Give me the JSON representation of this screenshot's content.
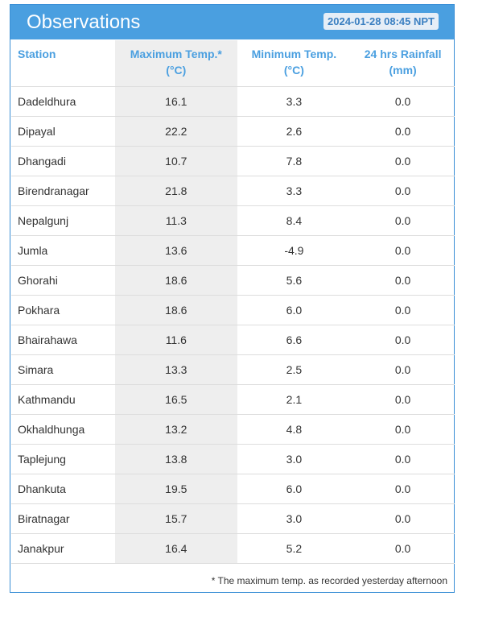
{
  "header": {
    "title": "Observations",
    "timestamp": "2024-01-28 08:45 NPT"
  },
  "table": {
    "columns": {
      "station": "Station",
      "max_temp_line1": "Maximum Temp.*",
      "max_temp_line2": "(°C)",
      "min_temp_line1": "Minimum Temp.",
      "min_temp_line2": "(°C)",
      "rainfall_line1": "24 hrs Rainfall",
      "rainfall_line2": "(mm)"
    },
    "rows": [
      {
        "station": "Dadeldhura",
        "max": "16.1",
        "min": "3.3",
        "rain": "0.0"
      },
      {
        "station": "Dipayal",
        "max": "22.2",
        "min": "2.6",
        "rain": "0.0"
      },
      {
        "station": "Dhangadi",
        "max": "10.7",
        "min": "7.8",
        "rain": "0.0"
      },
      {
        "station": "Birendranagar",
        "max": "21.8",
        "min": "3.3",
        "rain": "0.0"
      },
      {
        "station": "Nepalgunj",
        "max": "11.3",
        "min": "8.4",
        "rain": "0.0"
      },
      {
        "station": "Jumla",
        "max": "13.6",
        "min": "-4.9",
        "rain": "0.0"
      },
      {
        "station": "Ghorahi",
        "max": "18.6",
        "min": "5.6",
        "rain": "0.0"
      },
      {
        "station": "Pokhara",
        "max": "18.6",
        "min": "6.0",
        "rain": "0.0"
      },
      {
        "station": "Bhairahawa",
        "max": "11.6",
        "min": "6.6",
        "rain": "0.0"
      },
      {
        "station": "Simara",
        "max": "13.3",
        "min": "2.5",
        "rain": "0.0"
      },
      {
        "station": "Kathmandu",
        "max": "16.5",
        "min": "2.1",
        "rain": "0.0"
      },
      {
        "station": "Okhaldhunga",
        "max": "13.2",
        "min": "4.8",
        "rain": "0.0"
      },
      {
        "station": "Taplejung",
        "max": "13.8",
        "min": "3.0",
        "rain": "0.0"
      },
      {
        "station": "Dhankuta",
        "max": "19.5",
        "min": "6.0",
        "rain": "0.0"
      },
      {
        "station": "Biratnagar",
        "max": "15.7",
        "min": "3.0",
        "rain": "0.0"
      },
      {
        "station": "Janakpur",
        "max": "16.4",
        "min": "5.2",
        "rain": "0.0"
      }
    ]
  },
  "footnote": "* The maximum temp. as recorded yesterday afternoon",
  "colors": {
    "accent": "#4a9fe0",
    "highlight_column": "#eeeeee"
  }
}
